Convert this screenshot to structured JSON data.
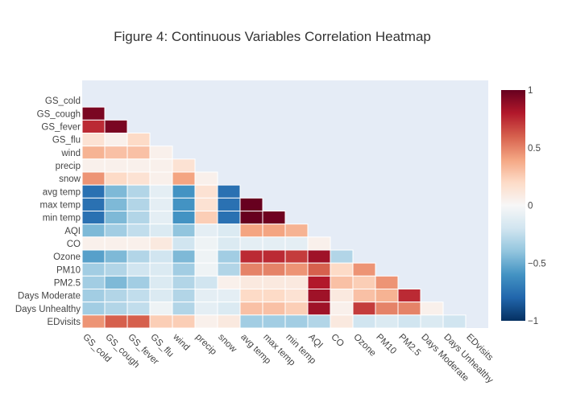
{
  "chart_data": {
    "type": "heatmap",
    "title": "Figure 4: Continuous Variables Correlation Heatmap",
    "variables": [
      "GS_cold",
      "GS_cough",
      "GS_fever",
      "GS_flu",
      "wind",
      "precip",
      "snow",
      "avg temp",
      "max temp",
      "min temp",
      "AQI",
      "CO",
      "Ozone",
      "PM10",
      "PM2.5",
      "Days Moderate",
      "Days Unhealthy",
      "EDvisits"
    ],
    "matrix_lower_triangle": [
      [],
      [
        0.95
      ],
      [
        0.75,
        0.95
      ],
      [
        0.15,
        0.05,
        0.2
      ],
      [
        0.35,
        0.3,
        0.3,
        0.05
      ],
      [
        0.05,
        0.05,
        0.05,
        0.05,
        0.15
      ],
      [
        0.45,
        0.2,
        0.15,
        0.05,
        0.4,
        0.05
      ],
      [
        -0.75,
        -0.45,
        -0.3,
        -0.1,
        -0.6,
        0.15,
        -0.75
      ],
      [
        -0.75,
        -0.45,
        -0.3,
        -0.1,
        -0.6,
        0.15,
        -0.75,
        1.0
      ],
      [
        -0.75,
        -0.45,
        -0.3,
        -0.1,
        -0.6,
        0.25,
        -0.75,
        1.0,
        0.98
      ],
      [
        -0.45,
        -0.35,
        -0.25,
        -0.15,
        -0.4,
        -0.1,
        -0.15,
        0.4,
        0.4,
        0.35
      ],
      [
        0.05,
        0.05,
        0.05,
        0.1,
        -0.2,
        -0.05,
        -0.15,
        -0.1,
        -0.1,
        -0.1,
        0.05
      ],
      [
        -0.55,
        -0.45,
        -0.3,
        -0.2,
        -0.45,
        -0.05,
        -0.35,
        0.75,
        0.75,
        0.7,
        0.85,
        -0.3
      ],
      [
        -0.35,
        -0.3,
        -0.2,
        -0.15,
        -0.35,
        -0.05,
        -0.3,
        0.5,
        0.5,
        0.45,
        0.6,
        0.2,
        0.45
      ],
      [
        -0.35,
        -0.45,
        -0.35,
        -0.15,
        -0.3,
        -0.2,
        0.05,
        0.1,
        0.1,
        0.1,
        0.8,
        0.3,
        0.25,
        0.45
      ],
      [
        -0.35,
        -0.3,
        -0.25,
        -0.15,
        -0.3,
        -0.1,
        -0.1,
        0.2,
        0.2,
        0.15,
        0.85,
        0.1,
        0.3,
        0.35,
        0.75
      ],
      [
        -0.35,
        -0.3,
        -0.25,
        -0.05,
        -0.3,
        -0.1,
        -0.15,
        0.3,
        0.3,
        0.25,
        0.85,
        0.05,
        0.7,
        0.5,
        0.5,
        0.05
      ],
      [
        0.45,
        0.6,
        0.6,
        0.25,
        0.25,
        0.05,
        0.1,
        -0.35,
        -0.35,
        -0.35,
        -0.3,
        0.1,
        -0.2,
        -0.15,
        -0.2,
        -0.15,
        -0.2
      ]
    ],
    "zrange": [
      -1,
      1
    ],
    "colorscale": "RdBu reversed",
    "colorbar_ticks": [
      1,
      0.5,
      0,
      -0.5,
      -1
    ],
    "colorbar_tick_labels": [
      "1",
      "0.5",
      "0",
      "−0.5",
      "−1"
    ],
    "plot_background": "#e5ecf6",
    "grid": false
  }
}
